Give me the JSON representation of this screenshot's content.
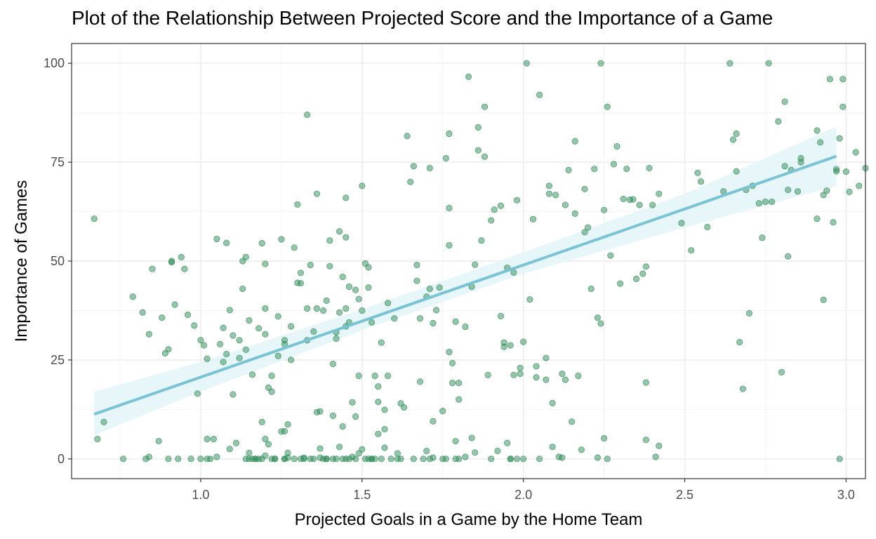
{
  "chart_data": {
    "type": "scatter",
    "title": "Plot of the Relationship Between Projected Score and the Importance of a Game",
    "xlabel": "Projected Goals in a Game by the Home Team",
    "ylabel": "Importance of Games",
    "xlim": [
      0.6,
      3.06
    ],
    "ylim": [
      -5,
      105
    ],
    "xticks": [
      1.0,
      1.5,
      2.0,
      2.5,
      3.0
    ],
    "xtick_labels": [
      "1.0",
      "1.5",
      "2.0",
      "2.5",
      "3.0"
    ],
    "yticks": [
      0,
      25,
      50,
      75,
      100
    ],
    "ytick_labels": [
      "0",
      "25",
      "50",
      "75",
      "100"
    ],
    "grid": true,
    "point_color": "#2e8b57",
    "trend_color": "#7ac3d4",
    "band_color": "#e3f4f7",
    "trend": {
      "type": "linear",
      "x0": 0.67,
      "y0": 11.3,
      "x1": 2.97,
      "y1": 76.5,
      "band_x": [
        0.67,
        1.0,
        1.5,
        2.0,
        2.5,
        2.97
      ],
      "band_lower": [
        6.0,
        17.0,
        32.5,
        46.8,
        58.5,
        69.0
      ],
      "band_upper": [
        17.0,
        24.5,
        37.8,
        52.2,
        67.0,
        84.0
      ]
    },
    "points": [
      [
        0.67,
        60.7
      ],
      [
        0.68,
        5
      ],
      [
        0.7,
        9.3
      ],
      [
        0.76,
        0
      ],
      [
        0.79,
        41
      ],
      [
        0.82,
        37
      ],
      [
        0.83,
        0
      ],
      [
        0.84,
        0.5
      ],
      [
        0.84,
        31.5
      ],
      [
        0.85,
        48
      ],
      [
        0.87,
        4.5
      ],
      [
        0.88,
        35.7
      ],
      [
        0.89,
        26.7
      ],
      [
        0.9,
        0
      ],
      [
        0.9,
        27.7
      ],
      [
        0.91,
        49.7
      ],
      [
        0.91,
        50
      ],
      [
        0.92,
        39
      ],
      [
        0.93,
        0
      ],
      [
        0.94,
        51
      ],
      [
        0.95,
        48
      ],
      [
        0.96,
        36.4
      ],
      [
        0.97,
        0
      ],
      [
        0.98,
        33.7
      ],
      [
        0.99,
        16.5
      ],
      [
        1.0,
        0
      ],
      [
        1.0,
        30
      ],
      [
        1.01,
        28.7
      ],
      [
        1.02,
        0
      ],
      [
        1.02,
        25.3
      ],
      [
        1.02,
        5
      ],
      [
        1.03,
        0
      ],
      [
        1.04,
        5
      ],
      [
        1.05,
        0.5
      ],
      [
        1.05,
        55.6
      ],
      [
        1.06,
        29
      ],
      [
        1.07,
        24.5
      ],
      [
        1.07,
        33.1
      ],
      [
        1.08,
        26.5
      ],
      [
        1.08,
        54.6
      ],
      [
        1.09,
        2.5
      ],
      [
        1.09,
        37.6
      ],
      [
        1.1,
        16.3
      ],
      [
        1.1,
        31.2
      ],
      [
        1.11,
        4
      ],
      [
        1.12,
        30
      ],
      [
        1.12,
        25.5
      ],
      [
        1.13,
        43
      ],
      [
        1.13,
        50
      ],
      [
        1.14,
        0
      ],
      [
        1.14,
        27.6
      ],
      [
        1.14,
        51
      ],
      [
        1.15,
        35
      ],
      [
        1.15,
        0
      ],
      [
        1.15,
        1.5
      ],
      [
        1.16,
        21.3
      ],
      [
        1.16,
        0
      ],
      [
        1.17,
        0
      ],
      [
        1.17,
        0
      ],
      [
        1.18,
        0
      ],
      [
        1.18,
        33
      ],
      [
        1.19,
        0
      ],
      [
        1.19,
        54.5
      ],
      [
        1.19,
        9.3
      ],
      [
        1.2,
        0.8
      ],
      [
        1.2,
        5
      ],
      [
        1.2,
        31.5
      ],
      [
        1.2,
        38
      ],
      [
        1.2,
        49.3
      ],
      [
        1.21,
        3.7
      ],
      [
        1.21,
        18
      ],
      [
        1.22,
        17
      ],
      [
        1.22,
        21
      ],
      [
        1.22,
        0
      ],
      [
        1.23,
        0
      ],
      [
        1.23,
        0
      ],
      [
        1.24,
        26
      ],
      [
        1.24,
        36
      ],
      [
        1.25,
        6.9
      ],
      [
        1.25,
        55.5
      ],
      [
        1.26,
        0
      ],
      [
        1.26,
        7
      ],
      [
        1.26,
        30
      ],
      [
        1.26,
        29
      ],
      [
        1.26,
        0
      ],
      [
        1.27,
        0.3
      ],
      [
        1.27,
        1.5
      ],
      [
        1.27,
        8.7
      ],
      [
        1.28,
        25
      ],
      [
        1.28,
        33.5
      ],
      [
        1.29,
        0
      ],
      [
        1.29,
        53.4
      ],
      [
        1.3,
        64.3
      ],
      [
        1.3,
        44.5
      ],
      [
        1.31,
        0
      ],
      [
        1.31,
        47
      ],
      [
        1.31,
        44.4
      ],
      [
        1.32,
        0.3
      ],
      [
        1.32,
        0
      ],
      [
        1.33,
        87
      ],
      [
        1.33,
        30
      ],
      [
        1.33,
        38
      ],
      [
        1.34,
        0
      ],
      [
        1.34,
        49
      ],
      [
        1.35,
        32.2
      ],
      [
        1.35,
        0
      ],
      [
        1.36,
        67
      ],
      [
        1.36,
        11.8
      ],
      [
        1.36,
        38
      ],
      [
        1.37,
        12
      ],
      [
        1.37,
        2.6
      ],
      [
        1.37,
        0.3
      ],
      [
        1.38,
        0
      ],
      [
        1.38,
        37.5
      ],
      [
        1.39,
        0
      ],
      [
        1.39,
        40
      ],
      [
        1.39,
        0
      ],
      [
        1.4,
        55.2
      ],
      [
        1.4,
        48.7
      ],
      [
        1.41,
        0
      ],
      [
        1.41,
        24
      ],
      [
        1.41,
        10.9
      ],
      [
        1.42,
        0
      ],
      [
        1.42,
        30.4
      ],
      [
        1.42,
        32
      ],
      [
        1.43,
        37
      ],
      [
        1.43,
        57.5
      ],
      [
        1.43,
        3
      ],
      [
        1.44,
        8.2
      ],
      [
        1.44,
        46
      ],
      [
        1.44,
        0
      ],
      [
        1.45,
        66
      ],
      [
        1.45,
        56
      ],
      [
        1.45,
        38
      ],
      [
        1.45,
        0
      ],
      [
        1.45,
        33.5
      ],
      [
        1.46,
        43.5
      ],
      [
        1.46,
        34.5
      ],
      [
        1.46,
        0
      ],
      [
        1.47,
        14.3
      ],
      [
        1.47,
        0.5
      ],
      [
        1.48,
        42.7
      ],
      [
        1.48,
        0
      ],
      [
        1.48,
        10.7
      ],
      [
        1.49,
        1.4
      ],
      [
        1.49,
        21
      ],
      [
        1.49,
        40.4
      ],
      [
        1.5,
        37.5
      ],
      [
        1.5,
        2.4
      ],
      [
        1.5,
        69
      ],
      [
        1.51,
        0
      ],
      [
        1.51,
        49.4
      ],
      [
        1.52,
        0
      ],
      [
        1.52,
        48.4
      ],
      [
        1.52,
        43.3
      ],
      [
        1.53,
        0
      ],
      [
        1.53,
        34.5
      ],
      [
        1.53,
        0
      ],
      [
        1.54,
        21
      ],
      [
        1.54,
        0
      ],
      [
        1.55,
        6.3
      ],
      [
        1.55,
        14.4
      ],
      [
        1.55,
        18.3
      ],
      [
        1.56,
        29.4
      ],
      [
        1.56,
        0
      ],
      [
        1.57,
        2.8
      ],
      [
        1.57,
        12.4
      ],
      [
        1.57,
        7.5
      ],
      [
        1.58,
        39.4
      ],
      [
        1.58,
        21
      ],
      [
        1.59,
        0
      ],
      [
        1.6,
        35.5
      ],
      [
        1.61,
        1.4
      ],
      [
        1.61,
        0
      ],
      [
        1.62,
        0
      ],
      [
        1.62,
        14
      ],
      [
        1.63,
        13
      ],
      [
        1.64,
        81.6
      ],
      [
        1.65,
        70
      ],
      [
        1.66,
        74
      ],
      [
        1.66,
        0
      ],
      [
        1.67,
        45
      ],
      [
        1.67,
        49
      ],
      [
        1.68,
        35.5
      ],
      [
        1.68,
        19.5
      ],
      [
        1.69,
        0
      ],
      [
        1.7,
        2
      ],
      [
        1.7,
        41
      ],
      [
        1.71,
        0
      ],
      [
        1.71,
        73.5
      ],
      [
        1.71,
        43
      ],
      [
        1.72,
        0.3
      ],
      [
        1.72,
        9.5
      ],
      [
        1.72,
        34.3
      ],
      [
        1.73,
        37.6
      ],
      [
        1.74,
        43.3
      ],
      [
        1.75,
        12.1
      ],
      [
        1.75,
        0
      ],
      [
        1.76,
        76
      ],
      [
        1.76,
        0
      ],
      [
        1.77,
        82.2
      ],
      [
        1.77,
        63.4
      ],
      [
        1.77,
        54
      ],
      [
        1.77,
        27
      ],
      [
        1.78,
        24.2
      ],
      [
        1.78,
        19.2
      ],
      [
        1.79,
        4.5
      ],
      [
        1.79,
        0
      ],
      [
        1.79,
        34.7
      ],
      [
        1.8,
        0
      ],
      [
        1.8,
        15
      ],
      [
        1.8,
        19.2
      ],
      [
        1.82,
        0.5
      ],
      [
        1.82,
        33.4
      ],
      [
        1.83,
        96.6
      ],
      [
        1.84,
        5.3
      ],
      [
        1.84,
        43.5
      ],
      [
        1.85,
        1.6
      ],
      [
        1.85,
        49.1
      ],
      [
        1.86,
        83.8
      ],
      [
        1.86,
        78
      ],
      [
        1.87,
        55.2
      ],
      [
        1.88,
        76.4
      ],
      [
        1.88,
        89
      ],
      [
        1.89,
        21.2
      ],
      [
        1.9,
        0
      ],
      [
        1.9,
        60.3
      ],
      [
        1.91,
        63
      ],
      [
        1.92,
        2
      ],
      [
        1.93,
        36.1
      ],
      [
        1.93,
        64
      ],
      [
        1.94,
        29.4
      ],
      [
        1.94,
        28.3
      ],
      [
        1.95,
        48.3
      ],
      [
        1.95,
        4
      ],
      [
        1.96,
        0
      ],
      [
        1.96,
        28.7
      ],
      [
        1.96,
        0
      ],
      [
        1.97,
        21.2
      ],
      [
        1.97,
        47.1
      ],
      [
        1.98,
        65.4
      ],
      [
        1.98,
        0
      ],
      [
        1.99,
        21.5
      ],
      [
        1.99,
        23
      ],
      [
        2.0,
        29.6
      ],
      [
        2.0,
        0
      ],
      [
        2.01,
        100
      ],
      [
        2.02,
        40.3
      ],
      [
        2.03,
        60.6
      ],
      [
        2.04,
        20.6
      ],
      [
        2.04,
        23.4
      ],
      [
        2.05,
        92
      ],
      [
        2.05,
        0
      ],
      [
        2.07,
        20
      ],
      [
        2.07,
        25.5
      ],
      [
        2.08,
        69
      ],
      [
        2.08,
        67
      ],
      [
        2.09,
        3
      ],
      [
        2.09,
        14.1
      ],
      [
        2.1,
        66.7
      ],
      [
        2.11,
        0.5
      ],
      [
        2.12,
        21.5
      ],
      [
        2.12,
        0.3
      ],
      [
        2.13,
        64.2
      ],
      [
        2.13,
        20
      ],
      [
        2.14,
        73
      ],
      [
        2.15,
        9.4
      ],
      [
        2.16,
        80.3
      ],
      [
        2.16,
        62
      ],
      [
        2.17,
        21
      ],
      [
        2.18,
        2.3
      ],
      [
        2.19,
        68.2
      ],
      [
        2.19,
        57.3
      ],
      [
        2.2,
        58.5
      ],
      [
        2.21,
        43
      ],
      [
        2.22,
        73.3
      ],
      [
        2.23,
        0.3
      ],
      [
        2.23,
        35.7
      ],
      [
        2.24,
        100
      ],
      [
        2.24,
        34.2
      ],
      [
        2.25,
        5.2
      ],
      [
        2.25,
        62.9
      ],
      [
        2.26,
        0
      ],
      [
        2.26,
        89
      ],
      [
        2.27,
        51.4
      ],
      [
        2.28,
        74.5
      ],
      [
        2.29,
        79
      ],
      [
        2.3,
        44.3
      ],
      [
        2.31,
        65.7
      ],
      [
        2.32,
        73.3
      ],
      [
        2.33,
        65.5
      ],
      [
        2.34,
        65.6
      ],
      [
        2.35,
        45.5
      ],
      [
        2.36,
        64.2
      ],
      [
        2.37,
        46.8
      ],
      [
        2.38,
        4.8
      ],
      [
        2.38,
        48.6
      ],
      [
        2.38,
        19.3
      ],
      [
        2.39,
        73.5
      ],
      [
        2.4,
        64.2
      ],
      [
        2.41,
        0.5
      ],
      [
        2.42,
        67
      ],
      [
        2.42,
        3.3
      ],
      [
        2.49,
        59.6
      ],
      [
        2.52,
        52.7
      ],
      [
        2.54,
        72.3
      ],
      [
        2.55,
        70.1
      ],
      [
        2.57,
        58.6
      ],
      [
        2.62,
        67.6
      ],
      [
        2.64,
        100
      ],
      [
        2.65,
        80.7
      ],
      [
        2.66,
        82.2
      ],
      [
        2.66,
        72.7
      ],
      [
        2.67,
        29.5
      ],
      [
        2.68,
        17.7
      ],
      [
        2.69,
        68
      ],
      [
        2.7,
        36.8
      ],
      [
        2.71,
        69
      ],
      [
        2.73,
        64.6
      ],
      [
        2.74,
        55.9
      ],
      [
        2.75,
        65
      ],
      [
        2.76,
        100
      ],
      [
        2.77,
        65
      ],
      [
        2.79,
        85.3
      ],
      [
        2.8,
        21.9
      ],
      [
        2.81,
        74
      ],
      [
        2.81,
        90.3
      ],
      [
        2.82,
        51.2
      ],
      [
        2.82,
        68
      ],
      [
        2.83,
        73
      ],
      [
        2.85,
        67.6
      ],
      [
        2.86,
        75
      ],
      [
        2.86,
        76
      ],
      [
        2.91,
        60.7
      ],
      [
        2.91,
        83
      ],
      [
        2.92,
        80
      ],
      [
        2.93,
        66.7
      ],
      [
        2.93,
        40.2
      ],
      [
        2.94,
        67.8
      ],
      [
        2.95,
        96
      ],
      [
        2.96,
        59.8
      ],
      [
        2.97,
        72.7
      ],
      [
        2.97,
        73.2
      ],
      [
        2.98,
        0
      ],
      [
        2.98,
        81
      ],
      [
        2.99,
        89
      ],
      [
        2.99,
        96
      ],
      [
        3.0,
        72.6
      ],
      [
        3.01,
        67.5
      ],
      [
        3.03,
        77.5
      ],
      [
        3.04,
        69
      ],
      [
        3.06,
        73.5
      ]
    ]
  }
}
